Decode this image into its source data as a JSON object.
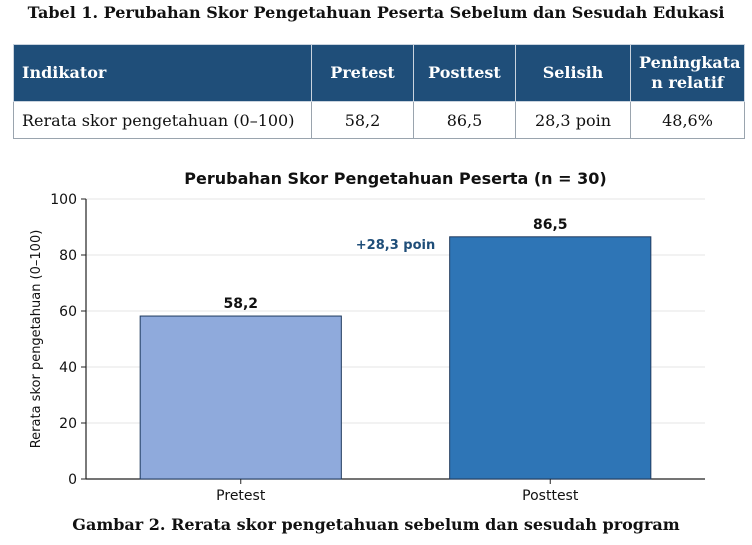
{
  "table": {
    "caption": "Tabel 1. Perubahan Skor Pengetahuan Peserta Sebelum dan Sesudah Edukasi",
    "headers": [
      "Indikator",
      "Pretest",
      "Posttest",
      "Selisih",
      "Peningkatan relatif"
    ],
    "header_lines": {
      "h4a": "Peningkata",
      "h4b": "n relatif"
    },
    "row": [
      "Rerata skor pengetahuan (0–100)",
      "58,2",
      "86,5",
      "28,3 poin",
      "48,6%"
    ]
  },
  "chart_data": {
    "type": "bar",
    "title": "Perubahan Skor Pengetahuan Peserta (n = 30)",
    "xlabel": "",
    "ylabel": "Rerata skor pengetahuan (0–100)",
    "categories": [
      "Pretest",
      "Posttest"
    ],
    "values": [
      58.2,
      86.5
    ],
    "value_labels": [
      "58,2",
      "86,5"
    ],
    "ylim": [
      0,
      100
    ],
    "yticks": [
      0,
      20,
      40,
      60,
      80,
      100
    ],
    "grid": "horizontal",
    "bar_colors": [
      "#8faadc",
      "#2e75b6"
    ],
    "annotation": "+28,3 poin",
    "annotation_color": "#1f4e79"
  },
  "figure_caption": "Gambar 2. Rerata skor pengetahuan sebelum dan sesudah program"
}
